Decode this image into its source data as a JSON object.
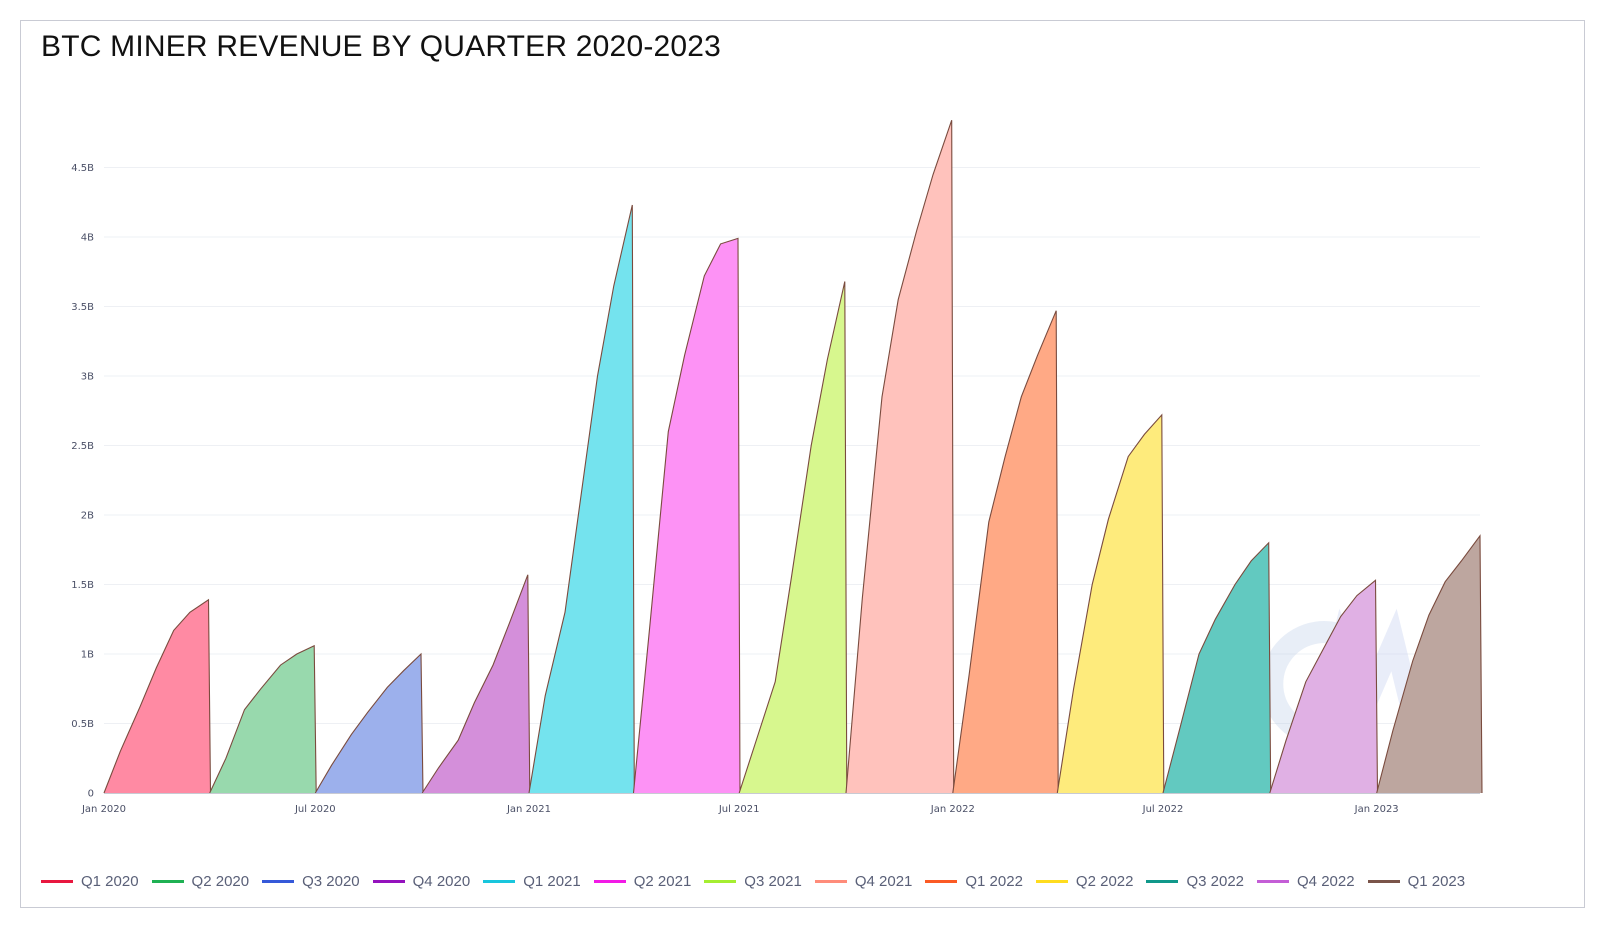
{
  "chart_data": {
    "type": "area",
    "title": "BTC MINER REVENUE BY QUARTER 2020-2023",
    "xlabel": "",
    "ylabel": "",
    "ylim": [
      0,
      4.85
    ],
    "y_unit": "B (USD)",
    "y_ticks": [
      {
        "value": 0,
        "label": "0"
      },
      {
        "value": 0.5,
        "label": "0.5B"
      },
      {
        "value": 1,
        "label": "1B"
      },
      {
        "value": 1.5,
        "label": "1.5B"
      },
      {
        "value": 2,
        "label": "2B"
      },
      {
        "value": 2.5,
        "label": "2.5B"
      },
      {
        "value": 3,
        "label": "3B"
      },
      {
        "value": 3.5,
        "label": "3.5B"
      },
      {
        "value": 4,
        "label": "4B"
      },
      {
        "value": 4.5,
        "label": "4.5B"
      }
    ],
    "x_range": [
      "2020-01-01",
      "2023-03-31"
    ],
    "x_ticks": [
      {
        "date": "2020-01-01",
        "label": "Jan 2020"
      },
      {
        "date": "2020-07-01",
        "label": "Jul 2020"
      },
      {
        "date": "2021-01-01",
        "label": "Jan 2021"
      },
      {
        "date": "2021-07-01",
        "label": "Jul 2021"
      },
      {
        "date": "2022-01-01",
        "label": "Jan 2022"
      },
      {
        "date": "2022-07-01",
        "label": "Jul 2022"
      },
      {
        "date": "2023-01-01",
        "label": "Jan 2023"
      }
    ],
    "grid": true,
    "legend_position": "bottom",
    "series": [
      {
        "name": "Q1 2020",
        "color": "#e8173f",
        "fill": "#ff8aa3",
        "points": [
          [
            "2020-01-01",
            0.0
          ],
          [
            "2020-01-15",
            0.3
          ],
          [
            "2020-02-01",
            0.62
          ],
          [
            "2020-02-15",
            0.9
          ],
          [
            "2020-03-01",
            1.17
          ],
          [
            "2020-03-15",
            1.3
          ],
          [
            "2020-03-31",
            1.39
          ]
        ]
      },
      {
        "name": "Q2 2020",
        "color": "#1fb153",
        "fill": "#98d9ad",
        "points": [
          [
            "2020-04-01",
            0.0
          ],
          [
            "2020-04-15",
            0.25
          ],
          [
            "2020-05-01",
            0.6
          ],
          [
            "2020-05-15",
            0.75
          ],
          [
            "2020-06-01",
            0.92
          ],
          [
            "2020-06-15",
            1.0
          ],
          [
            "2020-06-30",
            1.06
          ]
        ]
      },
      {
        "name": "Q3 2020",
        "color": "#3559d9",
        "fill": "#9cb0ec",
        "points": [
          [
            "2020-07-01",
            0.0
          ],
          [
            "2020-07-15",
            0.2
          ],
          [
            "2020-08-01",
            0.42
          ],
          [
            "2020-08-15",
            0.58
          ],
          [
            "2020-09-01",
            0.76
          ],
          [
            "2020-09-15",
            0.88
          ],
          [
            "2020-09-30",
            1.0
          ]
        ]
      },
      {
        "name": "Q4 2020",
        "color": "#9412bd",
        "fill": "#d48fda",
        "points": [
          [
            "2020-10-01",
            0.0
          ],
          [
            "2020-10-15",
            0.18
          ],
          [
            "2020-11-01",
            0.38
          ],
          [
            "2020-11-15",
            0.65
          ],
          [
            "2020-12-01",
            0.92
          ],
          [
            "2020-12-15",
            1.22
          ],
          [
            "2020-12-31",
            1.57
          ]
        ]
      },
      {
        "name": "Q1 2021",
        "color": "#18c6dd",
        "fill": "#74e3ee",
        "points": [
          [
            "2021-01-01",
            0.0
          ],
          [
            "2021-01-15",
            0.7
          ],
          [
            "2021-02-01",
            1.3
          ],
          [
            "2021-02-15",
            2.15
          ],
          [
            "2021-03-01",
            3.0
          ],
          [
            "2021-03-15",
            3.65
          ],
          [
            "2021-03-31",
            4.23
          ]
        ]
      },
      {
        "name": "Q2 2021",
        "color": "#f21ae6",
        "fill": "#fd92f5",
        "points": [
          [
            "2021-04-01",
            0.0
          ],
          [
            "2021-04-15",
            1.2
          ],
          [
            "2021-05-01",
            2.6
          ],
          [
            "2021-05-15",
            3.15
          ],
          [
            "2021-06-01",
            3.72
          ],
          [
            "2021-06-15",
            3.95
          ],
          [
            "2021-06-30",
            3.99
          ]
        ]
      },
      {
        "name": "Q3 2021",
        "color": "#a5ee31",
        "fill": "#d7f78e",
        "points": [
          [
            "2021-07-01",
            0.0
          ],
          [
            "2021-07-15",
            0.36
          ],
          [
            "2021-08-01",
            0.8
          ],
          [
            "2021-08-15",
            1.55
          ],
          [
            "2021-09-01",
            2.5
          ],
          [
            "2021-09-15",
            3.12
          ],
          [
            "2021-09-30",
            3.68
          ]
        ]
      },
      {
        "name": "Q4 2021",
        "color": "#ff8c7a",
        "fill": "#ffc2bc",
        "points": [
          [
            "2021-10-01",
            0.0
          ],
          [
            "2021-10-15",
            1.4
          ],
          [
            "2021-11-01",
            2.85
          ],
          [
            "2021-11-15",
            3.55
          ],
          [
            "2021-12-01",
            4.05
          ],
          [
            "2021-12-15",
            4.45
          ],
          [
            "2021-12-31",
            4.84
          ]
        ]
      },
      {
        "name": "Q1 2022",
        "color": "#fb5a24",
        "fill": "#ffa985",
        "points": [
          [
            "2022-01-01",
            0.0
          ],
          [
            "2022-01-15",
            0.85
          ],
          [
            "2022-02-01",
            1.95
          ],
          [
            "2022-02-15",
            2.42
          ],
          [
            "2022-03-01",
            2.85
          ],
          [
            "2022-03-15",
            3.15
          ],
          [
            "2022-03-31",
            3.47
          ]
        ]
      },
      {
        "name": "Q2 2022",
        "color": "#ffdc1f",
        "fill": "#feeb7c",
        "points": [
          [
            "2022-04-01",
            0.0
          ],
          [
            "2022-04-15",
            0.75
          ],
          [
            "2022-05-01",
            1.5
          ],
          [
            "2022-05-15",
            1.97
          ],
          [
            "2022-06-01",
            2.42
          ],
          [
            "2022-06-15",
            2.58
          ],
          [
            "2022-06-30",
            2.72
          ]
        ]
      },
      {
        "name": "Q3 2022",
        "color": "#10988a",
        "fill": "#62c9c0",
        "points": [
          [
            "2022-07-01",
            0.0
          ],
          [
            "2022-07-15",
            0.45
          ],
          [
            "2022-08-01",
            1.0
          ],
          [
            "2022-08-15",
            1.25
          ],
          [
            "2022-09-01",
            1.5
          ],
          [
            "2022-09-15",
            1.67
          ],
          [
            "2022-09-30",
            1.8
          ]
        ]
      },
      {
        "name": "Q4 2022",
        "color": "#c45ed6",
        "fill": "#e0b0e4",
        "points": [
          [
            "2022-10-01",
            0.0
          ],
          [
            "2022-10-15",
            0.38
          ],
          [
            "2022-11-01",
            0.8
          ],
          [
            "2022-11-15",
            1.02
          ],
          [
            "2022-12-01",
            1.27
          ],
          [
            "2022-12-15",
            1.42
          ],
          [
            "2022-12-31",
            1.53
          ]
        ]
      },
      {
        "name": "Q1 2023",
        "color": "#7a5449",
        "fill": "#bda69f",
        "points": [
          [
            "2023-01-01",
            0.0
          ],
          [
            "2023-01-15",
            0.45
          ],
          [
            "2023-02-01",
            0.95
          ],
          [
            "2023-02-15",
            1.28
          ],
          [
            "2023-03-01",
            1.52
          ],
          [
            "2023-03-15",
            1.67
          ],
          [
            "2023-03-31",
            1.85
          ]
        ]
      }
    ]
  }
}
